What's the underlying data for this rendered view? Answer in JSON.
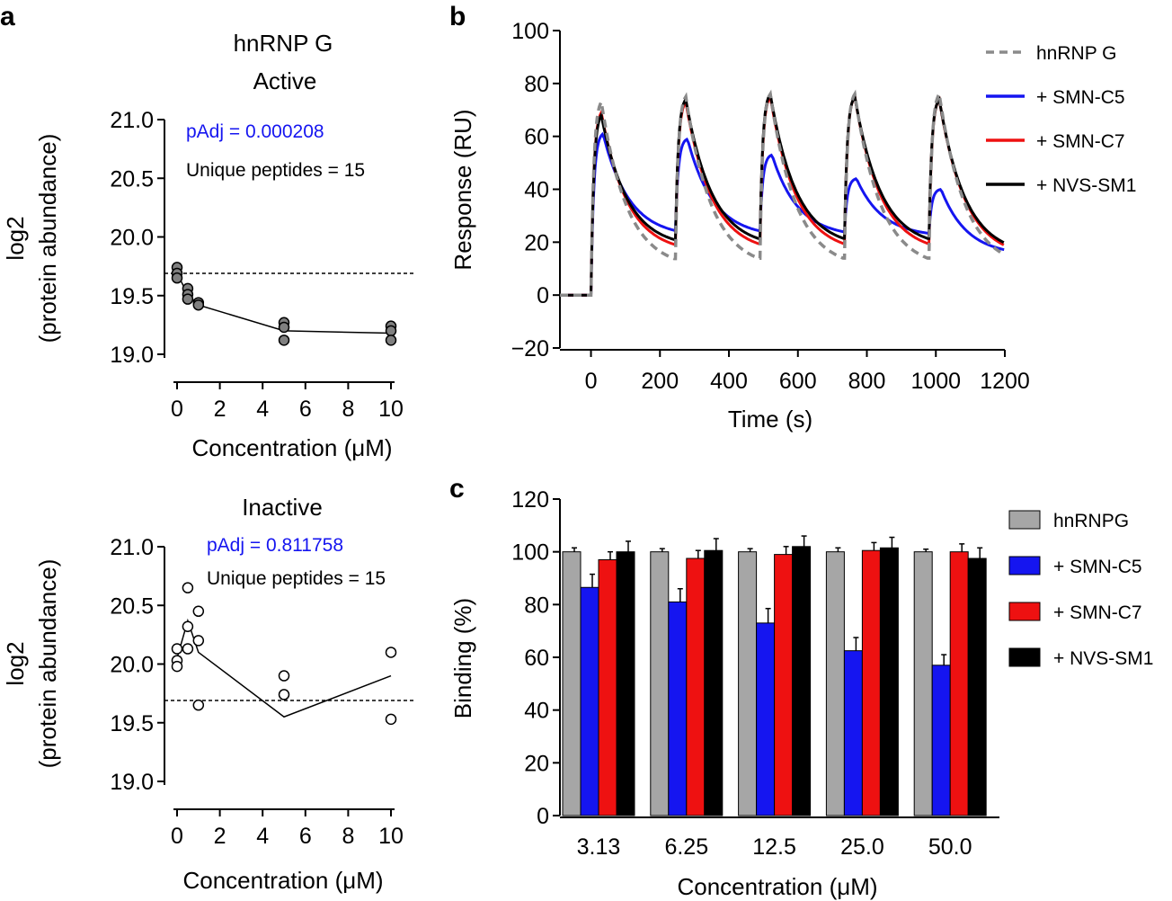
{
  "panels": {
    "a": "a",
    "b": "b",
    "c": "c"
  },
  "chart_data": [
    {
      "id": "a-active",
      "type": "scatter",
      "title": "hnRNP G",
      "subtitle": "Active",
      "xlabel": "Concentration (μM)",
      "ylabel": [
        "log2",
        "(protein abundance)"
      ],
      "xlim": [
        0,
        10
      ],
      "ylim": [
        19.0,
        21.0
      ],
      "xticks": [
        "0",
        "2",
        "4",
        "6",
        "8",
        "10"
      ],
      "yticks": [
        "19.0",
        "19.5",
        "20.0",
        "20.5",
        "21.0"
      ],
      "reference_line": 19.69,
      "points": [
        [
          0,
          19.74
        ],
        [
          0,
          19.69
        ],
        [
          0,
          19.65
        ],
        [
          0.5,
          19.56
        ],
        [
          0.5,
          19.51
        ],
        [
          0.5,
          19.47
        ],
        [
          1,
          19.44
        ],
        [
          1,
          19.42
        ],
        [
          5,
          19.27
        ],
        [
          5,
          19.23
        ],
        [
          5,
          19.12
        ],
        [
          10,
          19.24
        ],
        [
          10,
          19.2
        ],
        [
          10,
          19.12
        ]
      ],
      "mean_line": [
        [
          0,
          19.69
        ],
        [
          0.5,
          19.51
        ],
        [
          1,
          19.42
        ],
        [
          5,
          19.2
        ],
        [
          10,
          19.18
        ]
      ],
      "marker_fill": "#808080",
      "annotations": {
        "padj": "pAdj = 0.000208",
        "peptides": "Unique peptides = 15"
      },
      "padj_color": "#1515f0"
    },
    {
      "id": "a-inactive",
      "type": "scatter",
      "subtitle": "Inactive",
      "xlabel": "Concentration (μM)",
      "ylabel": [
        "log2",
        "(protein abundance)"
      ],
      "xlim": [
        0,
        10
      ],
      "ylim": [
        19.0,
        21.0
      ],
      "xticks": [
        "0",
        "2",
        "4",
        "6",
        "8",
        "10"
      ],
      "yticks": [
        "19.0",
        "19.5",
        "20.0",
        "20.5",
        "21.0"
      ],
      "reference_line": 19.69,
      "points": [
        [
          0,
          20.13
        ],
        [
          0,
          20.03
        ],
        [
          0,
          19.98
        ],
        [
          0.5,
          20.65
        ],
        [
          0.5,
          20.32
        ],
        [
          0.5,
          20.13
        ],
        [
          1,
          20.45
        ],
        [
          1,
          20.2
        ],
        [
          1,
          19.65
        ],
        [
          5,
          19.9
        ],
        [
          5,
          19.74
        ],
        [
          10,
          20.1
        ],
        [
          10,
          19.53
        ]
      ],
      "mean_line": [
        [
          0,
          20.05
        ],
        [
          0.5,
          20.37
        ],
        [
          1,
          20.1
        ],
        [
          5,
          19.55
        ],
        [
          10,
          19.9
        ]
      ],
      "marker_fill": "#ffffff",
      "annotations": {
        "padj": "pAdj = 0.811758",
        "peptides": "Unique peptides = 15"
      },
      "padj_color": "#1515f0"
    },
    {
      "id": "b",
      "type": "line",
      "xlabel": "Time (s)",
      "ylabel": "Response (RU)",
      "xlim": [
        -90,
        1200
      ],
      "ylim": [
        -20,
        100
      ],
      "xticks": [
        "0",
        "200",
        "400",
        "600",
        "800",
        "1000",
        "1200"
      ],
      "yticks": [
        "−20",
        "0",
        "20",
        "40",
        "60",
        "80",
        "100"
      ],
      "injections": [
        0,
        245,
        490,
        735,
        980
      ],
      "series": [
        {
          "name": "hnRNP G",
          "color": "#8a8a8a",
          "dashed": true,
          "peaks": [
            73,
            75,
            76,
            76,
            76
          ],
          "tail": 10,
          "end": 10,
          "peak_t": 30
        },
        {
          "name": "+ SMN-C5",
          "color": "#1515f0",
          "dashed": false,
          "peaks": [
            61,
            59,
            53,
            44,
            40
          ],
          "tail": 22,
          "end": 15,
          "peak_t": 35
        },
        {
          "name": "+ SMN-C7",
          "color": "#ee1111",
          "dashed": false,
          "peaks": [
            69,
            73,
            75,
            75,
            74
          ],
          "tail": 16,
          "end": 14,
          "peak_t": 30
        },
        {
          "name": "+ NVS-SM1",
          "color": "#000000",
          "dashed": false,
          "peaks": [
            68,
            74,
            76,
            75,
            74
          ],
          "tail": 18,
          "end": 15,
          "peak_t": 30
        }
      ]
    },
    {
      "id": "c",
      "type": "bar",
      "xlabel": "Concentration (μM)",
      "ylabel": "Binding (%)",
      "ylim": [
        0,
        120
      ],
      "yticks": [
        "0",
        "20",
        "40",
        "60",
        "80",
        "100",
        "120"
      ],
      "categories": [
        "3.13",
        "6.25",
        "12.5",
        "25.0",
        "50.0"
      ],
      "series": [
        {
          "name": "hnRNPG",
          "color": "#a6a6a6",
          "values": [
            100,
            100,
            100,
            100,
            100
          ],
          "errors": [
            1.5,
            1.2,
            1.2,
            1.5,
            1.0
          ]
        },
        {
          "name": "+ SMN-C5",
          "color": "#1515f0",
          "values": [
            86.5,
            81,
            73,
            62.5,
            57
          ],
          "errors": [
            5,
            5,
            5.5,
            5,
            4
          ]
        },
        {
          "name": "+ SMN-C7",
          "color": "#ee1111",
          "values": [
            97,
            97.5,
            99,
            100.5,
            100
          ],
          "errors": [
            3,
            3,
            3,
            3,
            3
          ]
        },
        {
          "name": "+ NVS-SM1",
          "color": "#000000",
          "values": [
            100,
            100.5,
            102,
            101.5,
            97.5
          ],
          "errors": [
            4,
            4.5,
            4,
            4,
            4
          ]
        }
      ]
    }
  ]
}
